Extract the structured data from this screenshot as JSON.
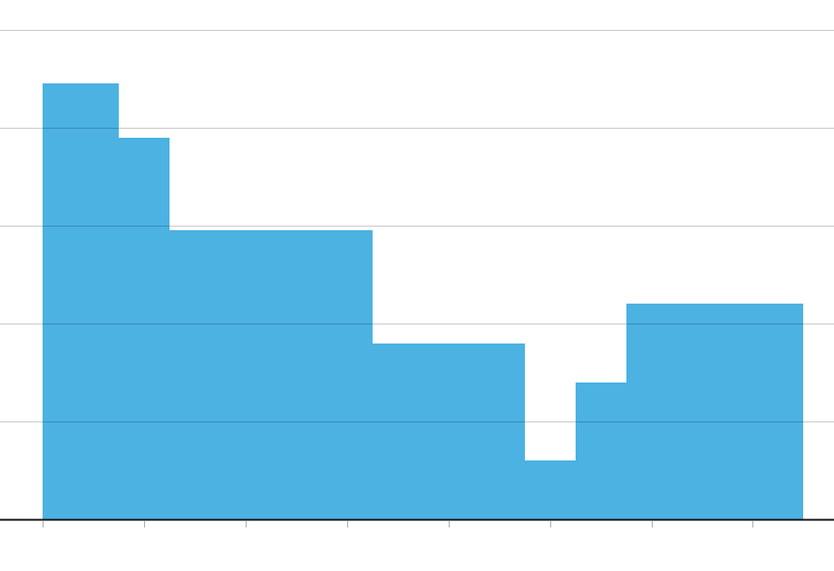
{
  "chart_data": {
    "type": "area",
    "step": true,
    "title": "",
    "xlabel": "",
    "ylabel": "",
    "x_ticks": [
      0,
      1,
      2,
      3,
      4,
      5,
      6,
      7
    ],
    "xlim": [
      -0.42,
      7.8
    ],
    "ylim": [
      0,
      5
    ],
    "y_gridlines": [
      1,
      2,
      3,
      4,
      5
    ],
    "grid": true,
    "steps": [
      {
        "x_start": 0,
        "x_end": 0.75,
        "y": 4.45
      },
      {
        "x_start": 0.75,
        "x_end": 1.25,
        "y": 3.9
      },
      {
        "x_start": 1.25,
        "x_end": 3.25,
        "y": 2.95
      },
      {
        "x_start": 3.25,
        "x_end": 4.75,
        "y": 1.8
      },
      {
        "x_start": 4.75,
        "x_end": 5.25,
        "y": 0.6
      },
      {
        "x_start": 5.25,
        "x_end": 5.75,
        "y": 1.4
      },
      {
        "x_start": 5.75,
        "x_end": 7.5,
        "y": 2.2
      }
    ],
    "colors": {
      "fill": "#4bb2e2",
      "grid": "#c8c8c8",
      "axis": "#111111",
      "tick": "#aaaaaa"
    }
  }
}
